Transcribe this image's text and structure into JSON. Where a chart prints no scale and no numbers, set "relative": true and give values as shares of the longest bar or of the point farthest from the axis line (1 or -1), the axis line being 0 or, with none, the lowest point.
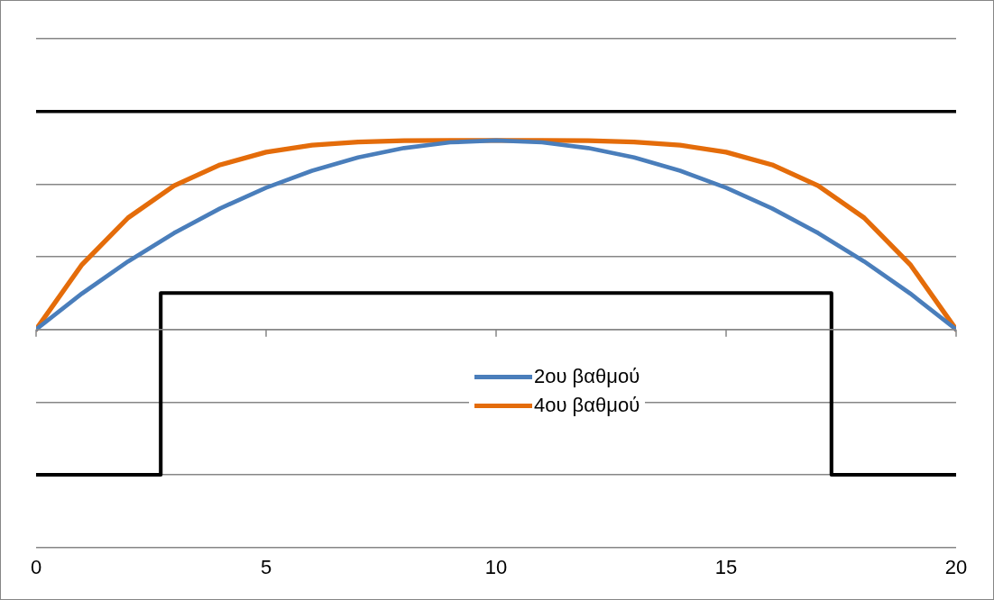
{
  "chart_data": {
    "type": "line",
    "relative": true,
    "xlim": [
      0,
      20
    ],
    "xticks": [
      0,
      5,
      10,
      15,
      20
    ],
    "tick_labels": "x",
    "grid": "y",
    "legend": "bottom",
    "marker": "none",
    "line_style": "solid",
    "series": [
      {
        "color": "#000000",
        "x": [
          0,
          20
        ],
        "values": [
          1,
          1
        ]
      },
      {
        "type": "step",
        "color": "#000000",
        "x": [
          0,
          2.71,
          17.29,
          20
        ],
        "values": [
          -0.667,
          0.167,
          -0.667,
          -0.667
        ]
      },
      {
        "name": "2ου βαθμού",
        "color": "#4a7ebb",
        "x": [
          0,
          1,
          2,
          3,
          4,
          5,
          6,
          7,
          8,
          9,
          10,
          11,
          12,
          13,
          14,
          15,
          16,
          17,
          18,
          19,
          20
        ],
        "values": [
          0,
          0.165,
          0.312,
          0.442,
          0.555,
          0.65,
          0.728,
          0.789,
          0.832,
          0.858,
          0.867,
          0.858,
          0.832,
          0.789,
          0.728,
          0.65,
          0.555,
          0.442,
          0.312,
          0.165,
          0
        ]
      },
      {
        "name": "4ου βαθμού",
        "color": "#e46c0a",
        "x": [
          0,
          1,
          2,
          3,
          4,
          5,
          6,
          7,
          8,
          9,
          10,
          11,
          12,
          13,
          14,
          15,
          16,
          17,
          18,
          19,
          20
        ],
        "values": [
          0,
          0.298,
          0.512,
          0.659,
          0.755,
          0.813,
          0.845,
          0.86,
          0.866,
          0.867,
          0.867,
          0.867,
          0.866,
          0.86,
          0.845,
          0.813,
          0.755,
          0.659,
          0.512,
          0.298,
          0
        ]
      }
    ]
  }
}
